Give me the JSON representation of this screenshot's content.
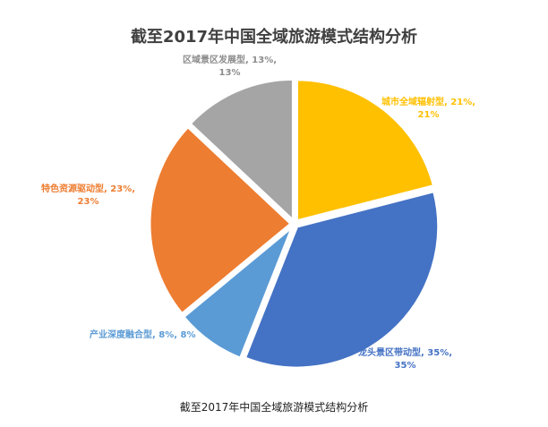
{
  "chart_data": {
    "type": "pie",
    "title": "截至2017年中国全域旅游模式结构分析",
    "caption": "截至2017年中国全域旅游模式结构分析",
    "slices": [
      {
        "name": "城市全域辐射型",
        "value": 21,
        "label": "城市全域辐射型, 21%,",
        "label2": "21%",
        "color": "#FFC000"
      },
      {
        "name": "龙头景区带动型",
        "value": 35,
        "label": "龙头景区带动型, 35%,",
        "label2": "35%",
        "color": "#4472C4"
      },
      {
        "name": "产业深度融合型",
        "value": 8,
        "label": "产业深度融合型, 8%, 8%",
        "label2": "",
        "color": "#5B9BD5"
      },
      {
        "name": "特色资源驱动型",
        "value": 23,
        "label": "特色资源驱动型, 23%,",
        "label2": "23%",
        "color": "#ED7D31"
      },
      {
        "name": "区域景区发展型",
        "value": 13,
        "label": "区域景区发展型, 13%,",
        "label2": "13%",
        "color": "#A5A5A5"
      }
    ],
    "start_angle_deg": 0,
    "direction": "clockwise",
    "legend": "none"
  }
}
